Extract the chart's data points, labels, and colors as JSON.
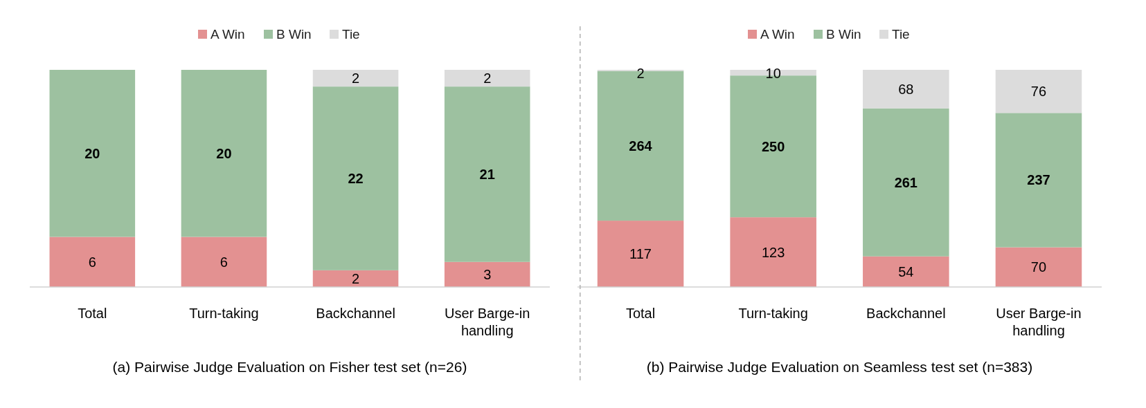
{
  "chart_data": [
    {
      "type": "bar",
      "stacked": true,
      "data_labels": true,
      "legend": "top",
      "title": "(a) Pairwise Judge Evaluation on Fisher test set (n=26)",
      "categories": [
        "Total",
        "Turn-taking",
        "Backchannel",
        "User Barge-in handling"
      ],
      "series": [
        {
          "name": "A  Win",
          "color": "#e39191",
          "values": [
            6,
            6,
            2,
            3
          ]
        },
        {
          "name": "B Win",
          "color": "#9dc1a0",
          "values": [
            20,
            20,
            22,
            21
          ]
        },
        {
          "name": "Tie",
          "color": "#dcdcdc",
          "values": [
            null,
            null,
            2,
            2
          ]
        }
      ]
    },
    {
      "type": "bar",
      "stacked": true,
      "data_labels": true,
      "legend": "top",
      "title": "(b) Pairwise Judge Evaluation on Seamless test set (n=383)",
      "categories": [
        "Total",
        "Turn-taking",
        "Backchannel",
        "User Barge-in handling"
      ],
      "series": [
        {
          "name": "A  Win",
          "color": "#e39191",
          "values": [
            117,
            123,
            54,
            70
          ]
        },
        {
          "name": "B Win",
          "color": "#9dc1a0",
          "values": [
            264,
            250,
            261,
            237
          ]
        },
        {
          "name": "Tie",
          "color": "#dcdcdc",
          "values": [
            2,
            10,
            68,
            76
          ]
        }
      ]
    }
  ]
}
